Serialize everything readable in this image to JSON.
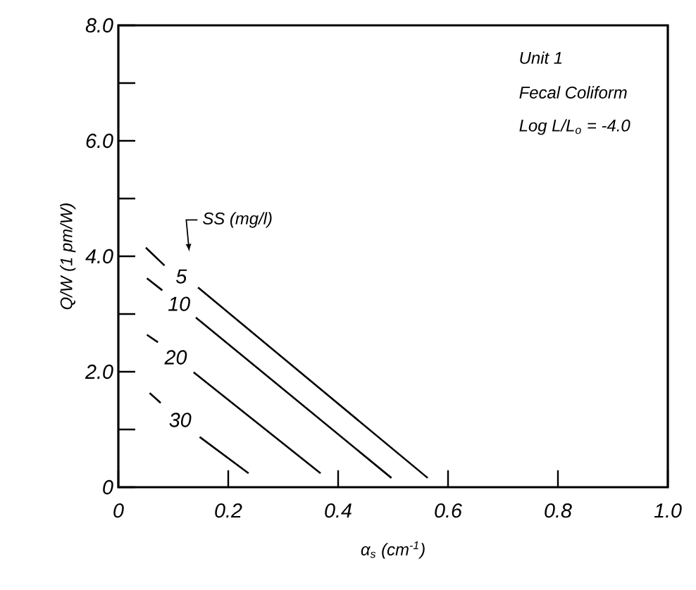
{
  "chart_data": {
    "type": "line",
    "xlabel": "α$_{s}$ (cm$^{-1}$)",
    "ylabel": "Q/W (1 pm/W)",
    "xlim": [
      0,
      1.0
    ],
    "ylim": [
      0,
      8.0
    ],
    "xticks": [
      0,
      0.2,
      0.4,
      0.6,
      0.8,
      {
        "value": 1.0,
        "label": "1.0"
      }
    ],
    "yticks": [
      0,
      {
        "value": 1,
        "label": null
      },
      {
        "value": 2,
        "label": "2.0"
      },
      {
        "value": 3,
        "label": null
      },
      {
        "value": 4,
        "label": "4.0"
      },
      {
        "value": 5,
        "label": null
      },
      {
        "value": 6,
        "label": "6.0"
      },
      {
        "value": 7,
        "label": null
      },
      {
        "value": 8,
        "label": "8.0"
      }
    ],
    "grid": false,
    "legend": "left",
    "annotations": [
      "Unit 1",
      "Fecal Coliform",
      "Log L/L$_{o}$ = -4.0",
      "SS (mg/l)"
    ],
    "series": [
      {
        "name": "5",
        "color": "#000000",
        "x": [
          0.05,
          0.084,
          null,
          0.145,
          0.563
        ],
        "values": [
          4.15,
          3.84,
          null,
          3.46,
          0.16
        ]
      },
      {
        "name": "10",
        "color": "#000000",
        "x": [
          0.052,
          0.08,
          null,
          0.141,
          0.497
        ],
        "values": [
          3.62,
          3.41,
          null,
          2.94,
          0.16
        ]
      },
      {
        "name": "20",
        "color": "#000000",
        "x": [
          0.052,
          0.072,
          null,
          0.137,
          0.368
        ],
        "values": [
          2.64,
          2.51,
          null,
          1.99,
          0.24
        ]
      },
      {
        "name": "30",
        "color": "#000000",
        "x": [
          0.057,
          0.077,
          null,
          0.148,
          0.237
        ],
        "values": [
          1.63,
          1.46,
          null,
          0.87,
          0.24
        ]
      }
    ]
  }
}
